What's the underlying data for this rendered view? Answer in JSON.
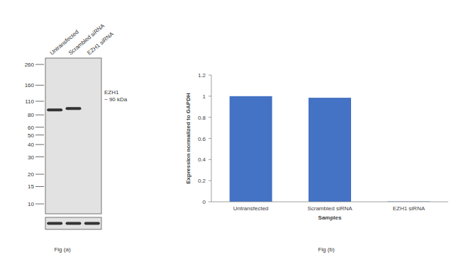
{
  "figure_a": {
    "caption": "Fig (a)",
    "lanes": [
      "Untransfected",
      "Scrambled siRNA",
      "EZH1 siRNA"
    ],
    "markers_kda": [
      260,
      160,
      110,
      80,
      60,
      50,
      40,
      30,
      20,
      15,
      10
    ],
    "target": "EZH1",
    "target_size": "~ 90 kDa",
    "bands": [
      {
        "lane": 0,
        "kda": 90
      },
      {
        "lane": 1,
        "kda": 93
      }
    ],
    "loading_control_lanes": [
      0,
      1,
      2
    ]
  },
  "chart_data": {
    "type": "bar",
    "caption": "Fig (b)",
    "categories": [
      "Untransfected",
      "Scrambled siRNA",
      "EZH1 siRNA"
    ],
    "values": [
      1.0,
      0.985,
      0.003
    ],
    "color": "#4472c4",
    "x_label": "Samples",
    "y_label": "Expression  normalized to GAPDH",
    "ylim": [
      0,
      1.2
    ],
    "yticks": [
      0,
      0.2,
      0.4,
      0.6,
      0.8,
      1,
      1.2
    ],
    "grid": false
  }
}
